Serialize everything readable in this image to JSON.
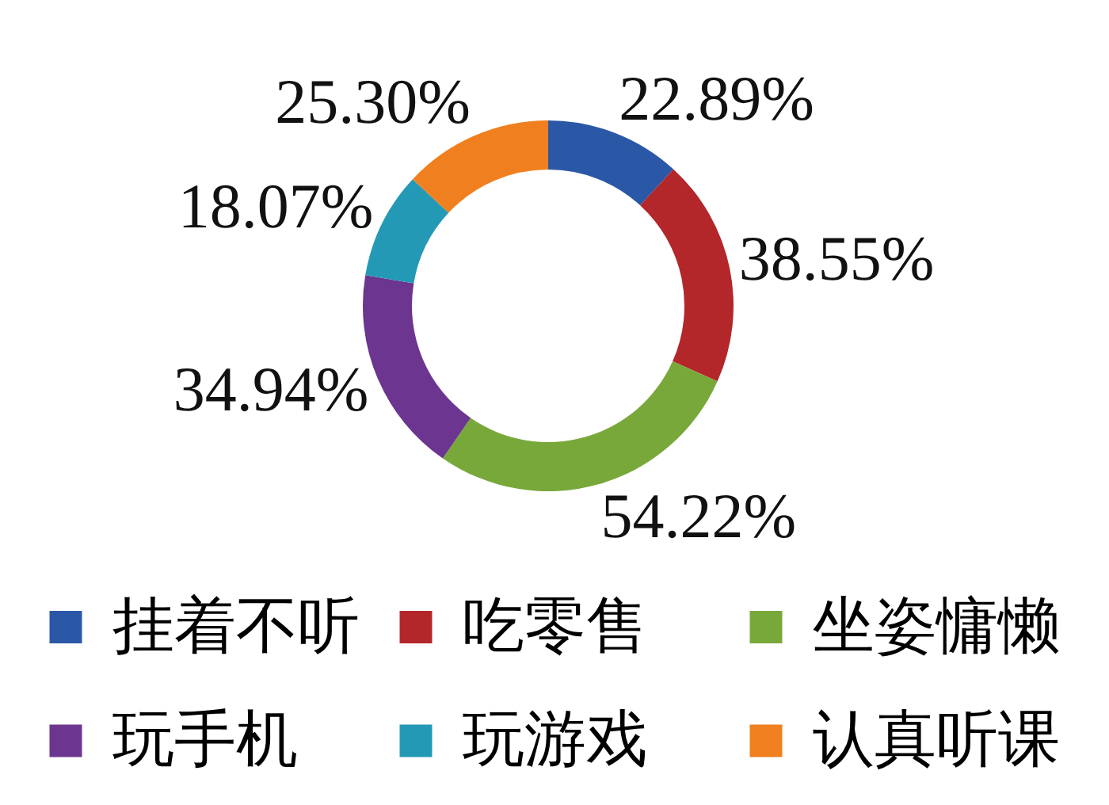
{
  "chart_data": {
    "type": "donut",
    "categories": [
      "挂着不听",
      "吃零售",
      "坐姿慵懒",
      "玩手机",
      "玩游戏",
      "认真听课"
    ],
    "values": [
      22.89,
      38.55,
      54.22,
      34.94,
      18.07,
      25.3
    ],
    "value_labels": [
      "22.89%",
      "38.55%",
      "54.22%",
      "34.94%",
      "18.07%",
      "25.30%"
    ],
    "colors": [
      "#2b58a6",
      "#b3262a",
      "#78a83a",
      "#6b3590",
      "#2499b5",
      "#f0801f"
    ],
    "legend": "bottom"
  }
}
